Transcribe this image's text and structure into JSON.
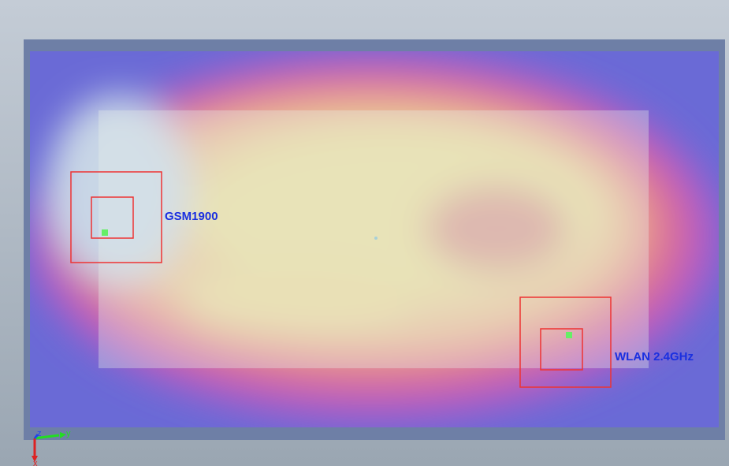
{
  "annotations": [
    {
      "label": "GSM1900"
    },
    {
      "label": "WLAN 2.4GHz"
    }
  ],
  "axis_triad": {
    "x": "x",
    "y": "y",
    "z": "z"
  }
}
